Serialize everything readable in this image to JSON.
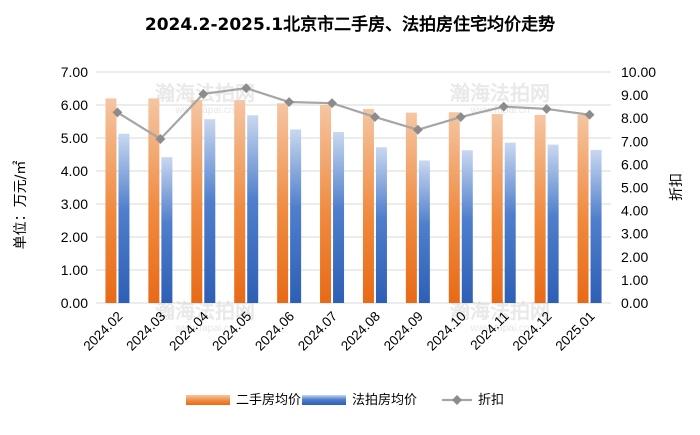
{
  "chart_data": {
    "type": "bar",
    "title": "2024.2-2025.1北京市二手房、法拍房住宅均价走势",
    "ylabel": "单位：万元/㎡",
    "y2label": "折扣",
    "categories": [
      "2024.02",
      "2024.03",
      "2024.04",
      "2024.05",
      "2024.06",
      "2024.07",
      "2024.08",
      "2024.09",
      "2024.10",
      "2024.11",
      "2024.12",
      "2025.01"
    ],
    "ylim": [
      0,
      7
    ],
    "y2lim": [
      0,
      10
    ],
    "yticks": [
      "0.00",
      "1.00",
      "2.00",
      "3.00",
      "4.00",
      "5.00",
      "6.00",
      "7.00"
    ],
    "y2ticks": [
      "0.00",
      "1.00",
      "2.00",
      "3.00",
      "4.00",
      "5.00",
      "6.00",
      "7.00",
      "8.00",
      "9.00",
      "10.00"
    ],
    "grid": true,
    "legend_position": "bottom",
    "series": [
      {
        "name": "二手房均价",
        "kind": "bar",
        "axis": "left",
        "color": "#f07c2c",
        "values": [
          6.2,
          6.2,
          6.15,
          6.15,
          6.05,
          6.0,
          5.88,
          5.77,
          5.78,
          5.73,
          5.7,
          5.7
        ]
      },
      {
        "name": "法拍房均价",
        "kind": "bar",
        "axis": "left",
        "color": "#3a6fc4",
        "values": [
          5.13,
          4.42,
          5.57,
          5.69,
          5.26,
          5.18,
          4.72,
          4.32,
          4.63,
          4.86,
          4.8,
          4.64
        ]
      },
      {
        "name": "折扣",
        "kind": "line",
        "axis": "right",
        "color": "#9a9a9a",
        "values": [
          8.25,
          7.1,
          9.05,
          9.3,
          8.7,
          8.65,
          8.05,
          7.5,
          8.05,
          8.5,
          8.4,
          8.15
        ]
      }
    ]
  },
  "watermark": {
    "text": "瀚海法拍网",
    "sub": "www.fapai.cn"
  }
}
